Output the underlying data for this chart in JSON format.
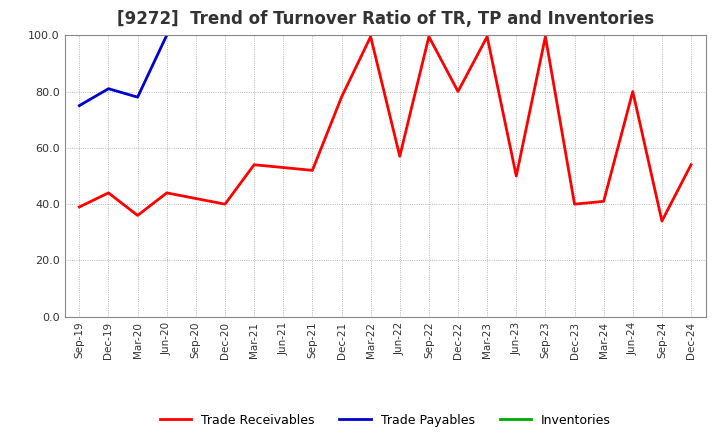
{
  "title": "[9272]  Trend of Turnover Ratio of TR, TP and Inventories",
  "x_labels": [
    "Sep-19",
    "Dec-19",
    "Mar-20",
    "Jun-20",
    "Sep-20",
    "Dec-20",
    "Mar-21",
    "Jun-21",
    "Sep-21",
    "Dec-21",
    "Mar-22",
    "Jun-22",
    "Sep-22",
    "Dec-22",
    "Mar-23",
    "Jun-23",
    "Sep-23",
    "Dec-23",
    "Mar-24",
    "Jun-24",
    "Sep-24",
    "Dec-24"
  ],
  "trade_receivables": [
    39.0,
    44.0,
    36.0,
    44.0,
    42.0,
    40.0,
    54.0,
    53.0,
    52.0,
    78.0,
    99.5,
    57.0,
    99.5,
    80.0,
    99.5,
    50.0,
    99.5,
    40.0,
    41.0,
    80.0,
    34.0,
    54.0
  ],
  "trade_payables": [
    75.0,
    81.0,
    78.0,
    100.0,
    null,
    null,
    null,
    null,
    null,
    null,
    null,
    null,
    null,
    null,
    null,
    null,
    null,
    null,
    null,
    null,
    null,
    null
  ],
  "inventories": [
    null,
    null,
    null,
    null,
    null,
    null,
    null,
    null,
    null,
    null,
    null,
    null,
    null,
    null,
    null,
    null,
    null,
    null,
    null,
    null,
    null,
    null
  ],
  "tr_color": "#ff0000",
  "tp_color": "#0000cc",
  "inv_color": "#00aa00",
  "ylim": [
    0.0,
    100.0
  ],
  "yticks": [
    0.0,
    20.0,
    40.0,
    60.0,
    80.0,
    100.0
  ],
  "background_color": "#ffffff",
  "plot_bg_color": "#ffffff",
  "grid_color": "#999999",
  "title_fontsize": 12,
  "title_color": "#333333",
  "tick_fontsize": 8,
  "legend_labels": [
    "Trade Receivables",
    "Trade Payables",
    "Inventories"
  ],
  "legend_fontsize": 9,
  "line_width": 2.0
}
